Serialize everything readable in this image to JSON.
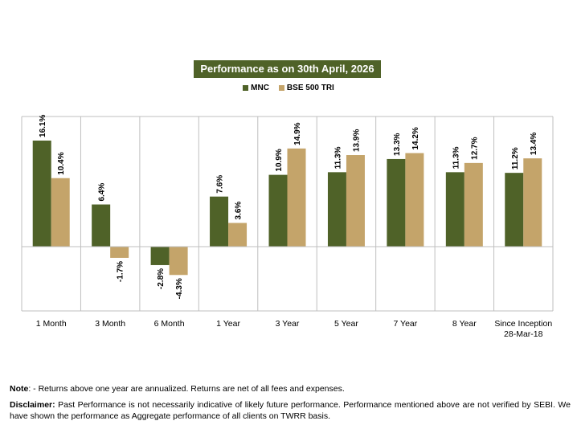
{
  "chart_data": {
    "type": "bar",
    "title": "Performance as on 30th April, 2026",
    "categories": [
      "1 Month",
      "3 Month",
      "6 Month",
      "1 Year",
      "3 Year",
      "5 Year",
      "7 Year",
      "8 Year",
      "Since Inception\n28-Mar-18"
    ],
    "series": [
      {
        "name": "MNC",
        "color": "#4f6228",
        "values": [
          16.1,
          6.4,
          -2.8,
          7.6,
          10.9,
          11.3,
          13.3,
          11.3,
          11.2
        ]
      },
      {
        "name": "BSE 500 TRI",
        "color": "#c4a46a",
        "values": [
          10.4,
          -1.7,
          -4.3,
          3.6,
          14.9,
          13.9,
          14.2,
          12.7,
          13.4
        ]
      }
    ],
    "data_labels": [
      [
        "16.1%",
        "6.4%",
        "-2.8%",
        "7.6%",
        "10.9%",
        "11.3%",
        "13.3%",
        "11.3%",
        "11.2%"
      ],
      [
        "10.4%",
        "-1.7%",
        "-4.3%",
        "3.6%",
        "14.9%",
        "13.9%",
        "14.2%",
        "12.7%",
        "13.4%"
      ]
    ],
    "ylim": [
      -10,
      20
    ],
    "legend_position": "top-center",
    "grid": "vertical category separators"
  },
  "notes": {
    "note_label": "Note",
    "note_text": ": - Returns above one year are annualized. Returns are net of all fees and expenses.",
    "disclaimer_label": "Disclaimer:",
    "disclaimer_text": " Past Performance is not necessarily indicative of likely future performance. Performance mentioned above are not verified by SEBI. We have shown the performance as Aggregate performance of all clients on TWRR basis."
  }
}
